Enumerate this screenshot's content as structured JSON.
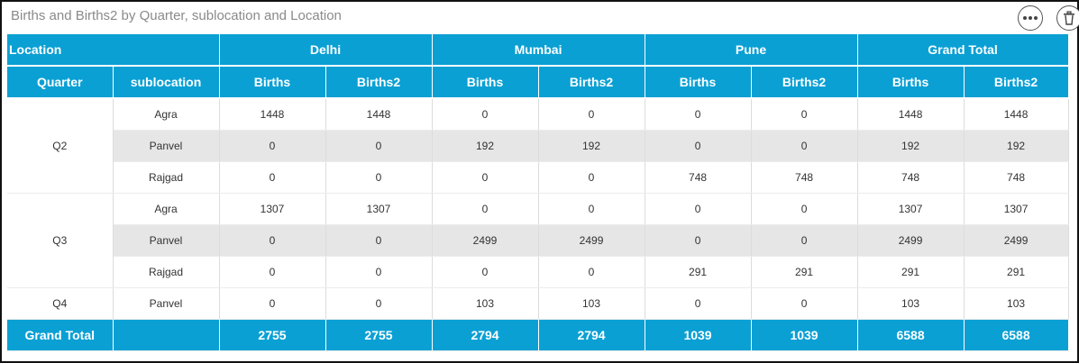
{
  "title": "Births and Births2 by Quarter, sublocation and Location",
  "header": {
    "location_label": "Location",
    "locations": [
      "Delhi",
      "Mumbai",
      "Pune",
      "Grand Total"
    ],
    "quarter_label": "Quarter",
    "sublocation_label": "sublocation",
    "measures": [
      "Births",
      "Births2"
    ]
  },
  "quarters": [
    {
      "quarter": "Q2",
      "rows": [
        {
          "sublocation": "Agra",
          "values": [
            "1448",
            "1448",
            "0",
            "0",
            "0",
            "0",
            "1448",
            "1448"
          ]
        },
        {
          "sublocation": "Panvel",
          "values": [
            "0",
            "0",
            "192",
            "192",
            "0",
            "0",
            "192",
            "192"
          ]
        },
        {
          "sublocation": "Rajgad",
          "values": [
            "0",
            "0",
            "0",
            "0",
            "748",
            "748",
            "748",
            "748"
          ]
        }
      ]
    },
    {
      "quarter": "Q3",
      "rows": [
        {
          "sublocation": "Agra",
          "values": [
            "1307",
            "1307",
            "0",
            "0",
            "0",
            "0",
            "1307",
            "1307"
          ]
        },
        {
          "sublocation": "Panvel",
          "values": [
            "0",
            "0",
            "2499",
            "2499",
            "0",
            "0",
            "2499",
            "2499"
          ]
        },
        {
          "sublocation": "Rajgad",
          "values": [
            "0",
            "0",
            "0",
            "0",
            "291",
            "291",
            "291",
            "291"
          ]
        }
      ]
    },
    {
      "quarter": "Q4",
      "rows": [
        {
          "sublocation": "Panvel",
          "values": [
            "0",
            "0",
            "103",
            "103",
            "0",
            "0",
            "103",
            "103"
          ]
        }
      ]
    }
  ],
  "grand_total": {
    "label": "Grand Total",
    "values": [
      "2755",
      "2755",
      "2794",
      "2794",
      "1039",
      "1039",
      "6588",
      "6588"
    ]
  },
  "icons": {
    "more": "more-options-icon",
    "trash": "trash-icon"
  },
  "colors": {
    "header_bg": "#0aa0d4",
    "alt_row_bg": "#e6e6e6"
  }
}
